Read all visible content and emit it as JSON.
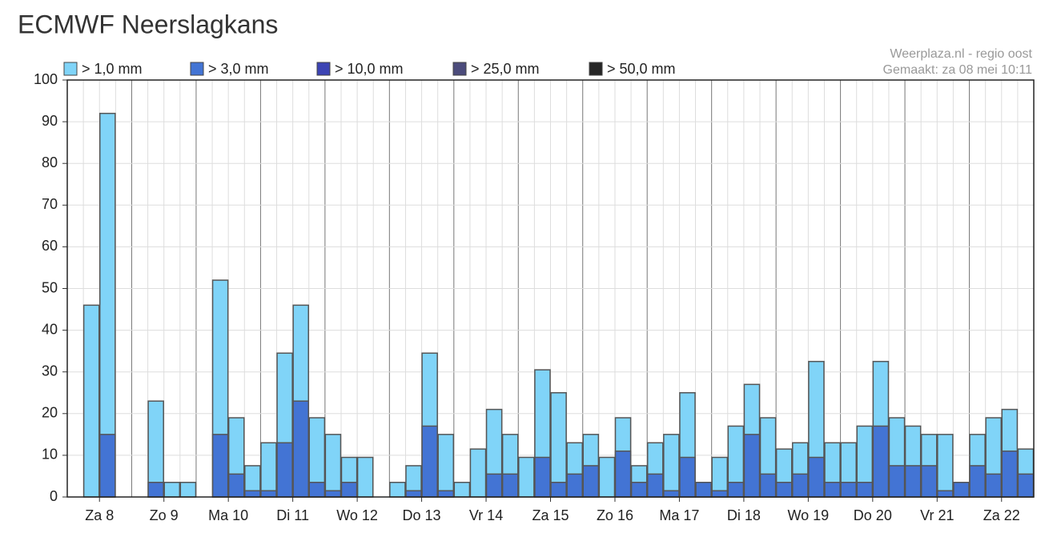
{
  "chart_data": {
    "type": "bar",
    "title": "ECMWF Neerslagkans",
    "source": "Weerplaza.nl - regio oost",
    "created": "Gemaakt: za 08 mei 10:11",
    "categories": [
      null,
      null,
      "Za 8",
      null,
      null,
      null,
      "Zo 9",
      null,
      null,
      null,
      "Ma 10",
      null,
      null,
      null,
      "Di 11",
      null,
      null,
      null,
      "Wo 12",
      null,
      null,
      null,
      "Do 13",
      null,
      null,
      null,
      "Vr 14",
      null,
      null,
      null,
      "Za 15",
      null,
      null,
      null,
      "Zo 16",
      null,
      null,
      null,
      "Ma 17",
      null,
      null,
      null,
      "Di 18",
      null,
      null,
      null,
      "Wo 19",
      null,
      null,
      null,
      "Do 20",
      null,
      null,
      null,
      "Vr 21",
      null,
      null,
      null,
      "Za 22",
      null
    ],
    "series": [
      {
        "name": "> 1,0 mm",
        "color": "#80d4f8",
        "values": [
          null,
          46,
          92,
          null,
          null,
          23,
          3.5,
          3.5,
          null,
          52,
          19,
          7.5,
          13,
          34.5,
          46,
          19,
          15,
          9.5,
          9.5,
          null,
          3.5,
          7.5,
          34.5,
          15,
          3.5,
          11.5,
          21,
          15,
          9.5,
          30.5,
          25,
          13,
          15,
          9.5,
          19,
          7.5,
          13,
          15,
          25,
          3.5,
          9.5,
          17,
          27,
          19,
          11.5,
          13,
          32.5,
          13,
          13,
          17,
          32.5,
          19,
          17,
          15,
          15,
          3.5,
          15,
          19,
          21,
          11.5
        ]
      },
      {
        "name": "> 3,0 mm",
        "color": "#4374d4",
        "values": [
          null,
          0,
          15,
          null,
          null,
          3.5,
          0,
          0,
          null,
          15,
          5.5,
          1.5,
          1.5,
          13,
          23,
          3.5,
          1.5,
          3.5,
          0,
          null,
          0,
          1.5,
          17,
          1.5,
          0,
          0,
          5.5,
          5.5,
          0,
          9.5,
          3.5,
          5.5,
          7.5,
          0,
          11,
          3.5,
          5.5,
          1.5,
          9.5,
          3.5,
          1.5,
          3.5,
          15,
          5.5,
          3.5,
          5.5,
          9.5,
          3.5,
          3.5,
          3.5,
          17,
          7.5,
          7.5,
          7.5,
          1.5,
          3.5,
          7.5,
          5.5,
          11,
          5.5
        ]
      },
      {
        "name": "> 10,0 mm",
        "color": "#3d44b4",
        "values": [
          null,
          0,
          0,
          null,
          null,
          0,
          0,
          0,
          null,
          0,
          0,
          0,
          0,
          0,
          0,
          0,
          0,
          0,
          0,
          null,
          0,
          0,
          0,
          0,
          0,
          0,
          0,
          0,
          0,
          0,
          0,
          0,
          0,
          0,
          0,
          0,
          0,
          0,
          0,
          0,
          0,
          0,
          0,
          0,
          0,
          0,
          0,
          0,
          0,
          0,
          0,
          0,
          0,
          0,
          0,
          0,
          0,
          0,
          0,
          0
        ]
      },
      {
        "name": "> 25,0 mm",
        "color": "#4c4c7c",
        "values": [
          null,
          0,
          0,
          null,
          null,
          0,
          0,
          0,
          null,
          0,
          0,
          0,
          0,
          0,
          0,
          0,
          0,
          0,
          0,
          null,
          0,
          0,
          0,
          0,
          0,
          0,
          0,
          0,
          0,
          0,
          0,
          0,
          0,
          0,
          0,
          0,
          0,
          0,
          0,
          0,
          0,
          0,
          0,
          0,
          0,
          0,
          0,
          0,
          0,
          0,
          0,
          0,
          0,
          0,
          0,
          0,
          0,
          0,
          0,
          0
        ]
      },
      {
        "name": "> 50,0 mm",
        "color": "#262626",
        "values": [
          null,
          0,
          0,
          null,
          null,
          0,
          0,
          0,
          null,
          0,
          0,
          0,
          0,
          0,
          0,
          0,
          0,
          0,
          0,
          null,
          0,
          0,
          0,
          0,
          0,
          0,
          0,
          0,
          0,
          0,
          0,
          0,
          0,
          0,
          0,
          0,
          0,
          0,
          0,
          0,
          0,
          0,
          0,
          0,
          0,
          0,
          0,
          0,
          0,
          0,
          0,
          0,
          0,
          0,
          0,
          0,
          0,
          0,
          0,
          0
        ]
      }
    ],
    "ylim": [
      0,
      100
    ],
    "yticks": [
      0,
      10,
      20,
      30,
      40,
      50,
      60,
      70,
      80,
      90,
      100
    ],
    "grid": true
  }
}
